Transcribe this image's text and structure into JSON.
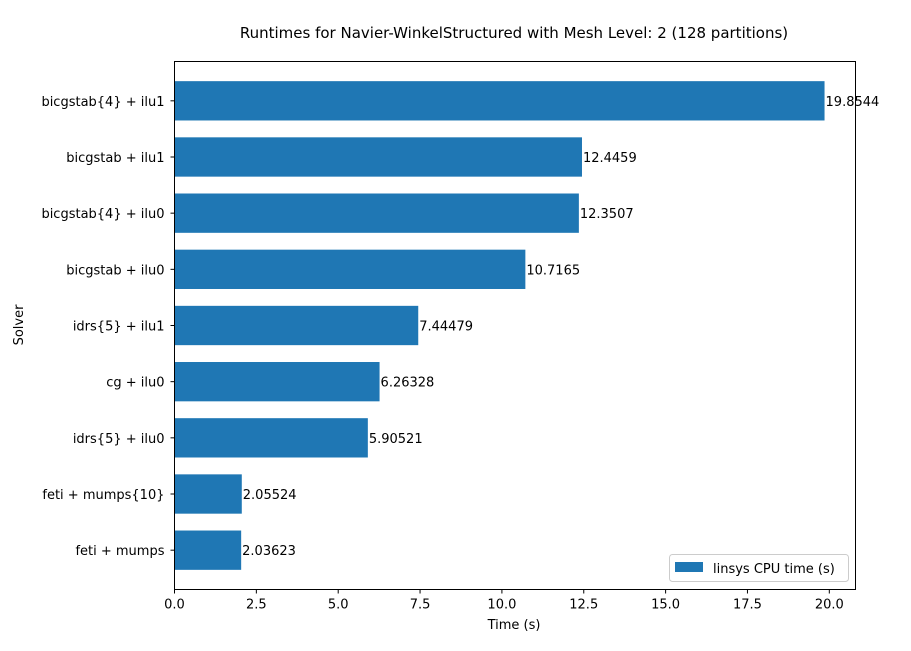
{
  "chart_data": {
    "type": "bar",
    "orientation": "horizontal",
    "title": "Runtimes for Navier-WinkelStructured with Mesh Level: 2 (128 partitions)",
    "xlabel": "Time (s)",
    "ylabel": "Solver",
    "xlim": [
      0,
      20.8
    ],
    "x_ticks": [
      "0.0",
      "2.5",
      "5.0",
      "7.5",
      "10.0",
      "12.5",
      "15.0",
      "17.5",
      "20.0"
    ],
    "x_tick_values": [
      0,
      2.5,
      5,
      7.5,
      10,
      12.5,
      15,
      17.5,
      20
    ],
    "grid": false,
    "legend_position": "lower-right",
    "series": [
      {
        "name": "linsys CPU time (s)",
        "color": "#1f77b4",
        "categories": [
          "bicgstab{4} + ilu1",
          "bicgstab + ilu1",
          "bicgstab{4} + ilu0",
          "bicgstab + ilu0",
          "idrs{5} + ilu1",
          "cg + ilu0",
          "idrs{5} + ilu0",
          "feti + mumps{10}",
          "feti + mumps"
        ],
        "values": [
          19.8544,
          12.4459,
          12.3507,
          10.7165,
          7.44479,
          6.26328,
          5.90521,
          2.05524,
          2.03623
        ],
        "labels": [
          "19.8544",
          "12.4459",
          "12.3507",
          "10.7165",
          "7.44479",
          "6.26328",
          "5.90521",
          "2.05524",
          "2.03623"
        ]
      }
    ]
  }
}
